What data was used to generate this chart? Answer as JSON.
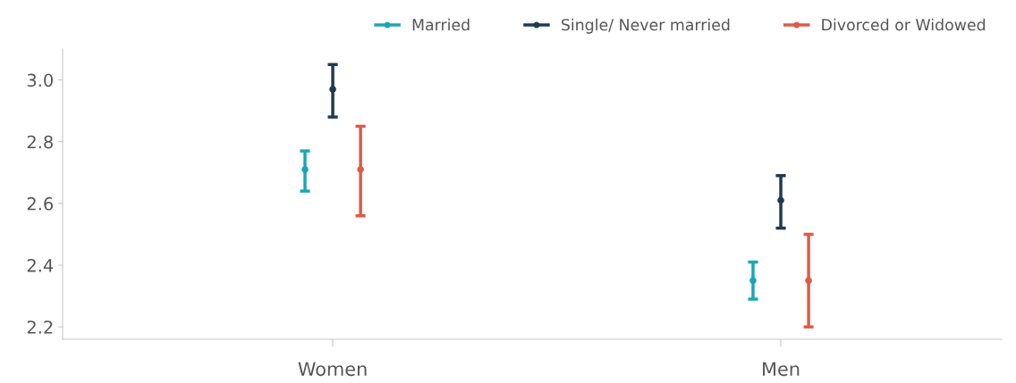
{
  "chart_data": {
    "type": "scatter",
    "categories": [
      "Women",
      "Men"
    ],
    "series": [
      {
        "name": "Married",
        "color": "#1aa6b7",
        "values": [
          2.71,
          2.35
        ],
        "errors": [
          [
            2.64,
            2.77
          ],
          [
            2.29,
            2.41
          ]
        ]
      },
      {
        "name": "Single/ Never married",
        "color": "#1e3a52",
        "values": [
          2.97,
          2.61
        ],
        "errors": [
          [
            2.88,
            3.05
          ],
          [
            2.52,
            2.69
          ]
        ]
      },
      {
        "name": "Divorced or Widowed",
        "color": "#e05a47",
        "values": [
          2.71,
          2.35
        ],
        "errors": [
          [
            2.56,
            2.85
          ],
          [
            2.2,
            2.5
          ]
        ]
      }
    ],
    "ylim": [
      2.16,
      3.1
    ],
    "yticks": [
      2.2,
      2.4,
      2.6,
      2.8,
      {
        "value": 3,
        "label": "3.0"
      }
    ],
    "grid": false,
    "legend": "top right",
    "marker": "circle"
  }
}
